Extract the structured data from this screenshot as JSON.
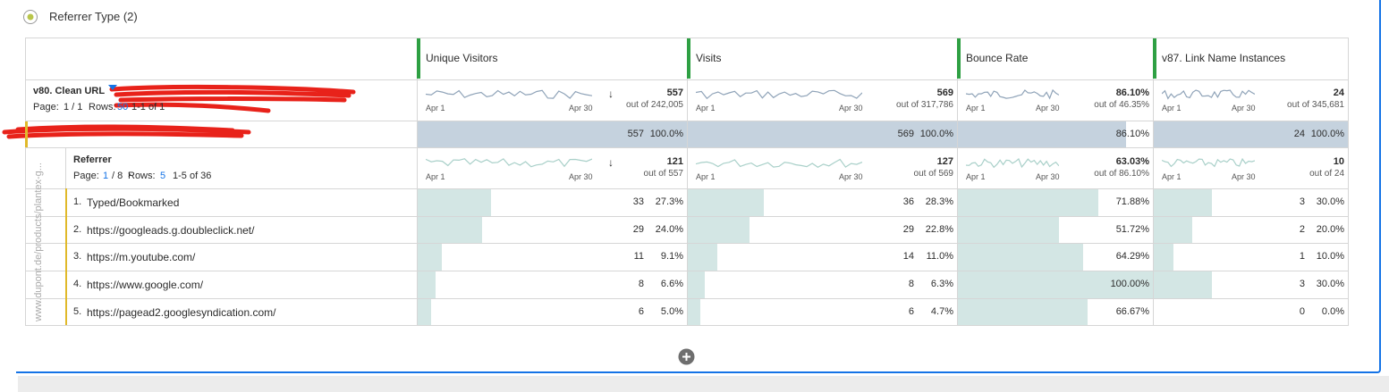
{
  "panel_title": "Referrer Type (2)",
  "columns": [
    "Unique Visitors",
    "Visits",
    "Bounce Rate",
    "v87. Link Name Instances"
  ],
  "spark": {
    "start": "Apr 1",
    "end": "Apr 30"
  },
  "summary": {
    "dimension": "v80. Clean URL",
    "page_label": "Page:",
    "page": "1 / 1",
    "rows_label": "Rows:",
    "rows_count": "50",
    "range": "1-1 of 1",
    "totals": [
      {
        "value": "557",
        "of": "out of 242,005"
      },
      {
        "value": "569",
        "of": "out of 317,786"
      },
      {
        "value": "86.10%",
        "of": "out of 46.35%"
      },
      {
        "value": "24",
        "of": "out of 345,681"
      }
    ]
  },
  "item": {
    "cells": [
      {
        "count": "557",
        "pct": {
          "value": 100,
          "label": "100.0%"
        }
      },
      {
        "count": "569",
        "pct": {
          "value": 100,
          "label": "100.0%"
        }
      },
      {
        "pct": {
          "value": 86.1,
          "label": "86.10%"
        }
      },
      {
        "count": "24",
        "pct": {
          "value": 100,
          "label": "100.0%"
        }
      }
    ]
  },
  "vertical_label": "www.dupont.de/products/plantex-g...",
  "breakdown": {
    "dimension": "Referrer",
    "page_label": "Page:",
    "page": "1",
    "pages": "/ 8",
    "rows_label": "Rows:",
    "rows_count": "5",
    "range": "1-5 of 36",
    "totals": [
      {
        "value": "121",
        "of": "out of 557"
      },
      {
        "value": "127",
        "of": "out of 569"
      },
      {
        "value": "63.03%",
        "of": "out of 86.10%"
      },
      {
        "value": "10",
        "of": "out of 24"
      }
    ],
    "rows": [
      {
        "rank": "1.",
        "name": "Typed/Bookmarked",
        "cells": [
          {
            "count": "33",
            "pct": {
              "value": 27.3,
              "label": "27.3%"
            }
          },
          {
            "count": "36",
            "pct": {
              "value": 28.3,
              "label": "28.3%"
            }
          },
          {
            "pct": {
              "value": 71.88,
              "label": "71.88%"
            }
          },
          {
            "count": "3",
            "pct": {
              "value": 30.0,
              "label": "30.0%"
            }
          }
        ]
      },
      {
        "rank": "2.",
        "name": "https://googleads.g.doubleclick.net/",
        "cells": [
          {
            "count": "29",
            "pct": {
              "value": 24.0,
              "label": "24.0%"
            }
          },
          {
            "count": "29",
            "pct": {
              "value": 22.8,
              "label": "22.8%"
            }
          },
          {
            "pct": {
              "value": 51.72,
              "label": "51.72%"
            }
          },
          {
            "count": "2",
            "pct": {
              "value": 20.0,
              "label": "20.0%"
            }
          }
        ]
      },
      {
        "rank": "3.",
        "name": "https://m.youtube.com/",
        "cells": [
          {
            "count": "11",
            "pct": {
              "value": 9.1,
              "label": "9.1%"
            }
          },
          {
            "count": "14",
            "pct": {
              "value": 11.0,
              "label": "11.0%"
            }
          },
          {
            "pct": {
              "value": 64.29,
              "label": "64.29%"
            }
          },
          {
            "count": "1",
            "pct": {
              "value": 10.0,
              "label": "10.0%"
            }
          }
        ]
      },
      {
        "rank": "4.",
        "name": "https://www.google.com/",
        "cells": [
          {
            "count": "8",
            "pct": {
              "value": 6.6,
              "label": "6.6%"
            }
          },
          {
            "count": "8",
            "pct": {
              "value": 6.3,
              "label": "6.3%"
            }
          },
          {
            "pct": {
              "value": 100.0,
              "label": "100.00%"
            }
          },
          {
            "count": "3",
            "pct": {
              "value": 30.0,
              "label": "30.0%"
            }
          }
        ]
      },
      {
        "rank": "5.",
        "name": "https://pagead2.googlesyndication.com/",
        "cells": [
          {
            "count": "6",
            "pct": {
              "value": 5.0,
              "label": "5.0%"
            }
          },
          {
            "count": "6",
            "pct": {
              "value": 4.7,
              "label": "4.7%"
            }
          },
          {
            "pct": {
              "value": 66.67,
              "label": "66.67%"
            }
          },
          {
            "count": "0",
            "pct": {
              "value": 0.0,
              "label": "0.0%"
            }
          }
        ]
      }
    ]
  }
}
